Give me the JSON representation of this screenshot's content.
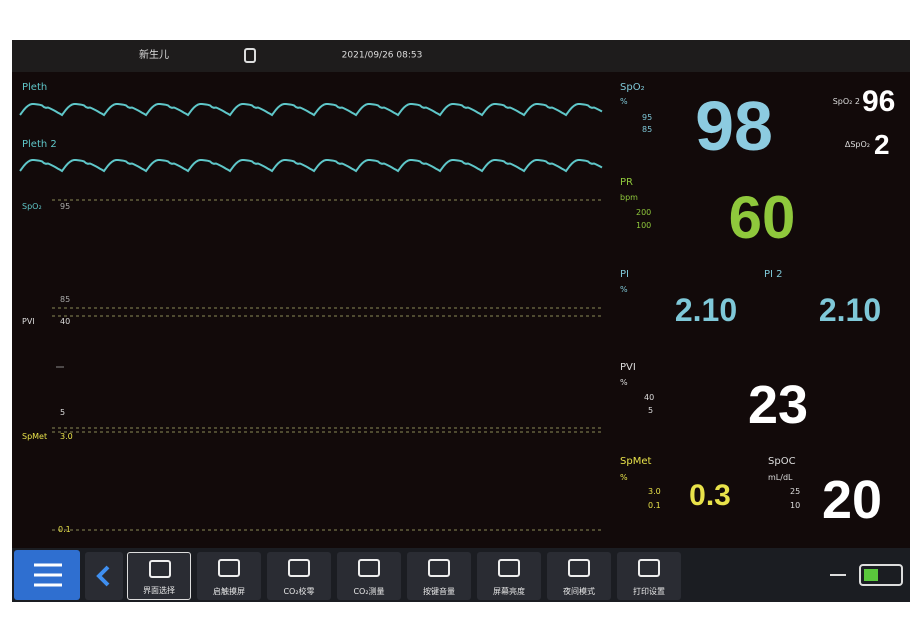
{
  "status_bar": {
    "patient_type": "新生儿",
    "datetime": "2021/09/26 08:53"
  },
  "waveforms": [
    {
      "label": "Pleth"
    },
    {
      "label": "Pleth 2"
    }
  ],
  "trend_scale": {
    "spo2": {
      "label": "SpO₂",
      "high": "95",
      "low": "85"
    },
    "pvi": {
      "label": "PVI",
      "high": "40",
      "low": "5"
    },
    "spmet": {
      "label": "SpMet",
      "high": "3.0",
      "low": "0.1"
    }
  },
  "parameters": {
    "spo2": {
      "label": "SpO₂",
      "unit": "%",
      "high": "95",
      "low": "85",
      "value": "98"
    },
    "spo2_2": {
      "label": "SpO₂ 2",
      "value": "96"
    },
    "delta_spo2": {
      "label": "ΔSpO₂",
      "value": "2"
    },
    "pr": {
      "label": "PR",
      "unit": "bpm",
      "high": "200",
      "low": "100",
      "value": "60"
    },
    "pi": {
      "label": "PI",
      "unit": "%",
      "value": "2.10"
    },
    "pi_2": {
      "label": "PI 2",
      "value": "2.10"
    },
    "pvi": {
      "label": "PVI",
      "unit": "%",
      "high": "40",
      "low": "5",
      "value": "23"
    },
    "spmet": {
      "label": "SpMet",
      "unit": "%",
      "high": "3.0",
      "low": "0.1",
      "value": "0.3"
    },
    "spoc": {
      "label": "SpOC",
      "unit": "mL/dL",
      "high": "25",
      "low": "10",
      "value": "20"
    }
  },
  "toolbar": [
    "界面选择",
    "启触摸屏",
    "CO₂校零",
    "CO₂测量",
    "按键音量",
    "屏幕亮度",
    "夜间模式",
    "打印设置"
  ]
}
